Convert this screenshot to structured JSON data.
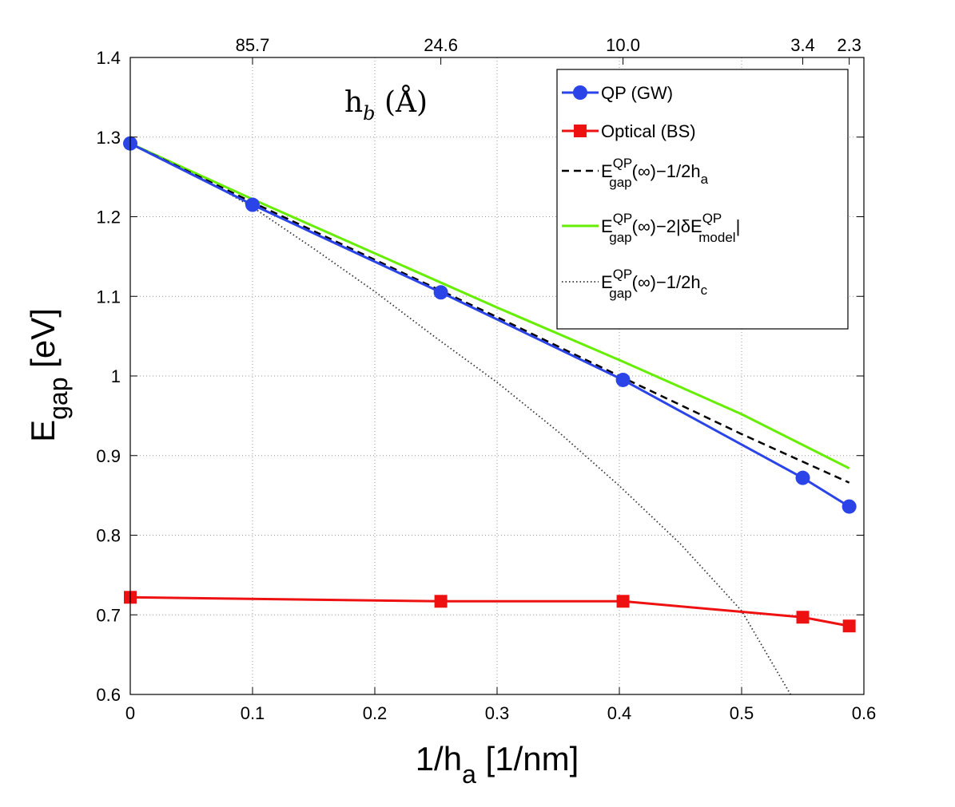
{
  "chart_data": {
    "type": "line",
    "xlabel": {
      "main": "1/h",
      "sub": "a",
      "rest": " [1/nm]"
    },
    "ylabel": {
      "main": "E",
      "sub": "gap",
      "rest": " [eV]"
    },
    "top_axis_label": {
      "main": "h",
      "sub": "b",
      "rest": " (Å)"
    },
    "xlim": [
      0,
      0.6
    ],
    "ylim": [
      0.6,
      1.4
    ],
    "x_ticks": [
      0,
      0.1,
      0.2,
      0.3,
      0.4,
      0.5,
      0.6
    ],
    "x_tick_labels": [
      "0",
      "0.1",
      "0.2",
      "0.3",
      "0.4",
      "0.5",
      "0.6"
    ],
    "y_ticks": [
      0.6,
      0.7,
      0.8,
      0.9,
      1.0,
      1.1,
      1.2,
      1.3,
      1.4
    ],
    "y_tick_labels": [
      "0.6",
      "0.7",
      "0.8",
      "0.9",
      "1",
      "1.1",
      "1.2",
      "1.3",
      "1.4"
    ],
    "top_ticks": [
      {
        "x": 0.1,
        "label": "85.7"
      },
      {
        "x": 0.254,
        "label": "24.6"
      },
      {
        "x": 0.403,
        "label": "10.0"
      },
      {
        "x": 0.55,
        "label": "3.4"
      },
      {
        "x": 0.588,
        "label": "2.3"
      }
    ],
    "grid": true,
    "legend_position": "top-right",
    "series": [
      {
        "name": "QP (GW)",
        "color": "#2b44e8",
        "style": "solid-circle",
        "x": [
          0,
          0.1,
          0.254,
          0.403,
          0.55,
          0.588
        ],
        "y": [
          1.292,
          1.215,
          1.105,
          0.995,
          0.872,
          0.836
        ]
      },
      {
        "name": "Optical (BS)",
        "color": "#ee1111",
        "style": "solid-square",
        "x": [
          0,
          0.254,
          0.403,
          0.55,
          0.588
        ],
        "y": [
          0.722,
          0.717,
          0.717,
          0.697,
          0.686
        ]
      },
      {
        "name": "E_gap^QP(∞)−1/2h_a",
        "color": "#000000",
        "style": "dashed",
        "x": [
          0,
          0.1,
          0.2,
          0.3,
          0.4,
          0.5,
          0.588
        ],
        "y": [
          1.292,
          1.218,
          1.146,
          1.074,
          1.0,
          0.927,
          0.866
        ]
      },
      {
        "name": "E_gap^QP(∞)−2|δE_model^QP|",
        "color": "#66ee00",
        "style": "solid",
        "x": [
          0,
          0.1,
          0.2,
          0.3,
          0.4,
          0.5,
          0.588
        ],
        "y": [
          1.292,
          1.222,
          1.154,
          1.086,
          1.02,
          0.952,
          0.884
        ]
      },
      {
        "name": "E_gap^QP(∞)−1/2h_c",
        "color": "#333333",
        "style": "dotted",
        "x": [
          0,
          0.05,
          0.1,
          0.15,
          0.2,
          0.25,
          0.3,
          0.35,
          0.4,
          0.45,
          0.5,
          0.54
        ],
        "y": [
          1.292,
          1.256,
          1.212,
          1.16,
          1.106,
          1.048,
          0.992,
          0.93,
          0.862,
          0.789,
          0.705,
          0.6
        ]
      }
    ],
    "legend": [
      {
        "main": "QP (GW)"
      },
      {
        "main": "Optical (BS)"
      },
      {
        "main": "E",
        "sup": "QP",
        "sub": "gap",
        "rest1": "(∞)−1/2h",
        "sub2": "a"
      },
      {
        "main": "E",
        "sup": "QP",
        "sub": "gap",
        "rest1": "(∞)−2|δE",
        "sup2": "QP",
        "sub2": "model",
        "rest2": "|"
      },
      {
        "main": "E",
        "sup": "QP",
        "sub": "gap",
        "rest1": "(∞)−1/2h",
        "sub2": "c"
      }
    ]
  }
}
